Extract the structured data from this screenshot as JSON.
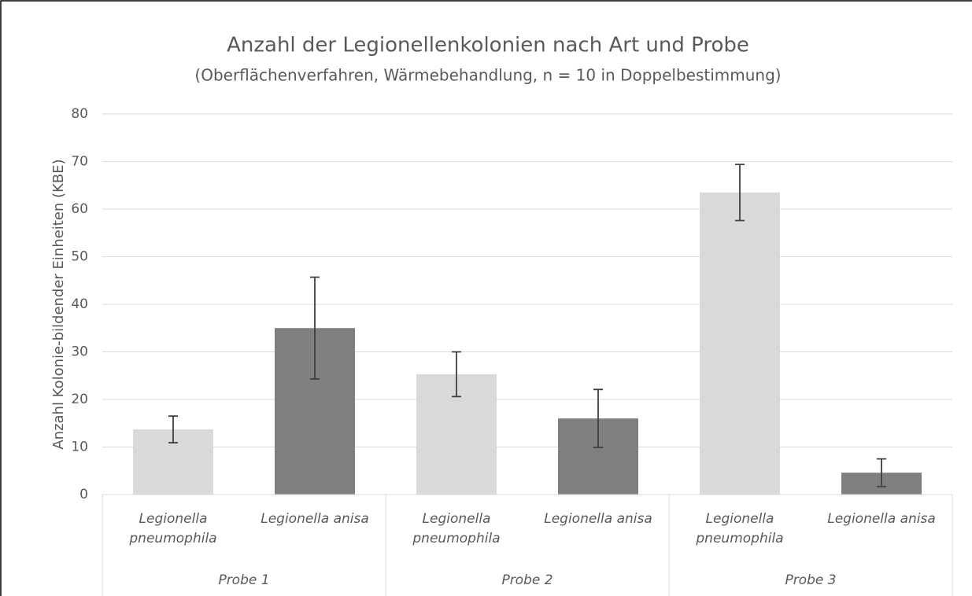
{
  "chart_data": {
    "type": "bar",
    "title": "Anzahl der Legionellenkolonien nach Art und Probe",
    "subtitle": "(Oberflächenverfahren, Wärmebehandlung, n = 10 in Doppelbestimmung)",
    "y_label": "Anzahl Kolonie-bildender Einheiten (KBE)",
    "categories": [
      "Legionella pneumophila",
      "Legionella anisa",
      "Legionella pneumophila",
      "Legionella anisa",
      "Legionella pneumophila",
      "Legionella anisa"
    ],
    "groups": [
      "Probe 1",
      "Probe 2",
      "Probe 3"
    ],
    "values": [
      13.7,
      35.0,
      25.3,
      16.0,
      63.5,
      4.6
    ],
    "errors": [
      2.8,
      10.7,
      4.7,
      6.1,
      5.9,
      2.9
    ],
    "colors": [
      "#d9d9d9",
      "#7f7f7f",
      "#d9d9d9",
      "#7f7f7f",
      "#d9d9d9",
      "#7f7f7f"
    ],
    "ylim": [
      0,
      80
    ],
    "yticks": [
      0,
      10,
      20,
      30,
      40,
      50,
      60,
      70,
      80
    ],
    "grid": true
  }
}
